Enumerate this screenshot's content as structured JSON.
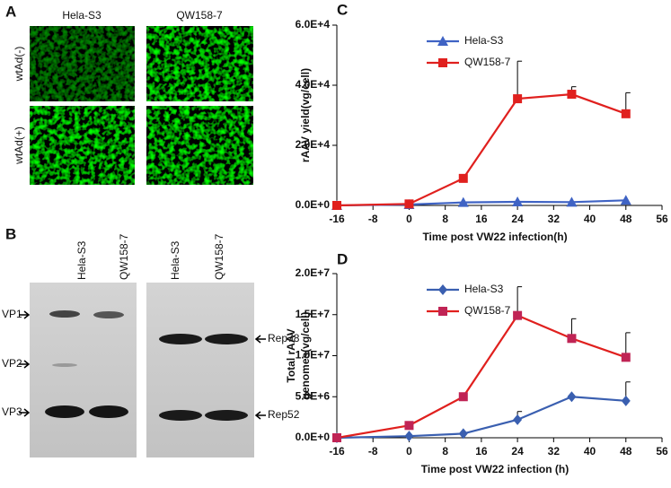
{
  "panels": {
    "a": {
      "letter": "A",
      "columns": [
        "Hela-S3",
        "QW158-7"
      ],
      "rows": [
        "wtAd(-)",
        "wtAd(+)"
      ]
    },
    "b": {
      "letter": "B",
      "left_lanes": [
        "Hela-S3",
        "QW158-7"
      ],
      "right_lanes": [
        "Hela-S3",
        "QW158-7"
      ],
      "left_bands": [
        "VP1",
        "VP2",
        "VP3"
      ],
      "right_bands": [
        "Rep78",
        "Rep52"
      ]
    }
  },
  "chart_data": [
    {
      "type": "line",
      "panel": "C",
      "ylabel_lines": [
        "rAAV yield(vg/cell)"
      ],
      "xlabel": "Time post VW22 infection(h)",
      "x": [
        -16,
        0,
        12,
        24,
        36,
        48
      ],
      "xlim": [
        -16,
        56
      ],
      "xticks": [
        -16,
        -8,
        0,
        8,
        16,
        24,
        32,
        40,
        48,
        56
      ],
      "ylim": [
        0,
        60000
      ],
      "yticks": [
        {
          "value": 0,
          "label": "0.0E+0"
        },
        {
          "value": 20000,
          "label": "2.0E+4"
        },
        {
          "value": 40000,
          "label": "4.0E+4"
        },
        {
          "value": 60000,
          "label": "6.0E+4"
        }
      ],
      "series": [
        {
          "name": "Hela-S3",
          "color": "#3f63c4",
          "marker": "triangle",
          "values": [
            0,
            300,
            1000,
            1200,
            1100,
            1700
          ]
        },
        {
          "name": "QW158-7",
          "color": "#e0201e",
          "marker": "square",
          "values": [
            0,
            500,
            9000,
            35500,
            37000,
            30500
          ],
          "errors": [
            null,
            null,
            null,
            12500,
            2500,
            7000
          ]
        }
      ]
    },
    {
      "type": "line",
      "panel": "D",
      "ylabel_lines": [
        "Total rAAV",
        "genomes(vg/cell)"
      ],
      "xlabel": "Time post VW22 infection (h)",
      "x": [
        -16,
        0,
        12,
        24,
        36,
        48
      ],
      "xlim": [
        -16,
        56
      ],
      "xticks": [
        -16,
        -8,
        0,
        8,
        16,
        24,
        32,
        40,
        48,
        56
      ],
      "ylim": [
        0,
        20000000
      ],
      "yticks": [
        {
          "value": 0,
          "label": "0.0E+0"
        },
        {
          "value": 5000000,
          "label": "5.0E+6"
        },
        {
          "value": 10000000,
          "label": "1.0E+7"
        },
        {
          "value": 15000000,
          "label": "1.5E+7"
        },
        {
          "value": 20000000,
          "label": "2.0E+7"
        }
      ],
      "series": [
        {
          "name": "Hela-S3",
          "color": "#3a5fb0",
          "marker": "diamond",
          "values": [
            0,
            200000,
            500000,
            2200000,
            5000000,
            4500000
          ],
          "errors": [
            null,
            null,
            null,
            1000000,
            null,
            2300000
          ]
        },
        {
          "name": "QW158-7",
          "color": "#e0201e",
          "marker": "square",
          "marker_color": "#c02455",
          "values": [
            0,
            1500000,
            5000000,
            14900000,
            12100000,
            9800000
          ],
          "errors": [
            null,
            null,
            null,
            3500000,
            2400000,
            3000000
          ]
        }
      ]
    }
  ]
}
